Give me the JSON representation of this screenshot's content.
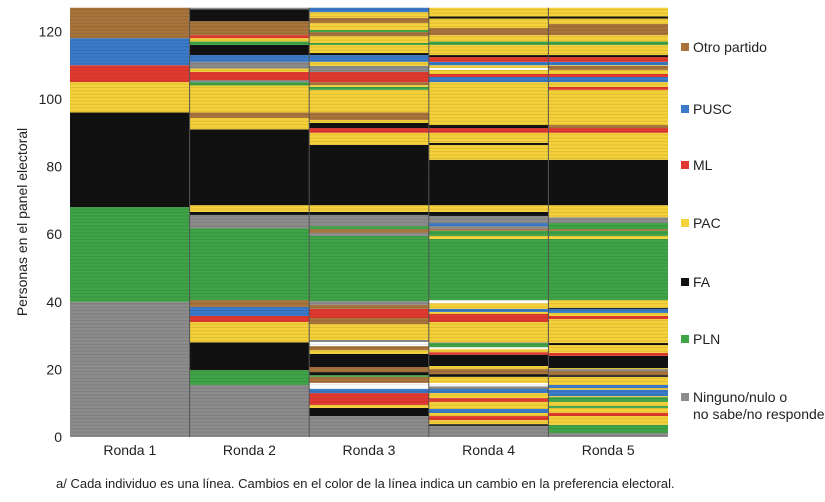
{
  "chart_data": {
    "type": "bar",
    "ylabel": "Personas en el panel electoral",
    "ylim": [
      0,
      127
    ],
    "yticks": [
      "0",
      "20",
      "40",
      "60",
      "80",
      "100",
      "120"
    ],
    "categories": [
      "Ronda 1",
      "Ronda 2",
      "Ronda 3",
      "Ronda 4",
      "Ronda 5"
    ],
    "legend": [
      {
        "key": "Otro",
        "label": "Otro partido",
        "color": "#a8743c"
      },
      {
        "key": "PUSC",
        "label": "PUSC",
        "color": "#3a7ac8"
      },
      {
        "key": "ML",
        "label": "ML",
        "color": "#e03a30"
      },
      {
        "key": "PAC",
        "label": "PAC",
        "color": "#f5d13a"
      },
      {
        "key": "FA",
        "label": "FA",
        "color": "#111111"
      },
      {
        "key": "PLN",
        "label": "PLN",
        "color": "#3fa347"
      },
      {
        "key": "Ninguno",
        "label": "Ninguno/nulo o",
        "label2": "no sabe/no responde",
        "color": "#8c8c8c"
      }
    ],
    "extra_colors": {
      "blank": "#ffffff"
    },
    "rounds": [
      [
        [
          0,
          40,
          "Ninguno"
        ],
        [
          40,
          68,
          "PLN"
        ],
        [
          68,
          96,
          "FA"
        ],
        [
          96,
          105,
          "PAC"
        ],
        [
          105,
          110,
          "ML"
        ],
        [
          110,
          118,
          "PUSC"
        ],
        [
          118,
          127,
          "Otro"
        ]
      ],
      [
        [
          0,
          15.4,
          "Ninguno"
        ],
        [
          15.4,
          19.8,
          "PLN"
        ],
        [
          19.8,
          28,
          "FA"
        ],
        [
          28,
          34,
          "PAC"
        ],
        [
          34,
          35.8,
          "ML"
        ],
        [
          35.8,
          38.5,
          "PUSC"
        ],
        [
          38.5,
          40.5,
          "Otro"
        ],
        [
          40.5,
          61.8,
          "PLN"
        ],
        [
          61.8,
          65.7,
          "Ninguno"
        ],
        [
          65.7,
          66.6,
          "FA"
        ],
        [
          66.6,
          68.6,
          "PAC"
        ],
        [
          68.6,
          91,
          "FA"
        ],
        [
          91,
          94.4,
          "PAC"
        ],
        [
          94.4,
          96,
          "Otro"
        ],
        [
          96,
          104,
          "PAC"
        ],
        [
          104,
          105,
          "PLN"
        ],
        [
          105,
          105.6,
          "Ninguno"
        ],
        [
          105.6,
          108,
          "ML"
        ],
        [
          108,
          109,
          "PAC"
        ],
        [
          109,
          111,
          "Ninguno"
        ],
        [
          111,
          113,
          "PUSC"
        ],
        [
          113,
          116,
          "FA"
        ],
        [
          116,
          117,
          "PLN"
        ],
        [
          117,
          118,
          "PAC"
        ],
        [
          118,
          118.9,
          "ML"
        ],
        [
          118.9,
          123,
          "Otro"
        ],
        [
          123,
          126.5,
          "FA"
        ],
        [
          126.5,
          127,
          "Ninguno"
        ]
      ],
      [
        [
          0,
          6.2,
          "Ninguno"
        ],
        [
          6.2,
          8.6,
          "FA"
        ],
        [
          8.6,
          9.5,
          "PAC"
        ],
        [
          9.5,
          13,
          "ML"
        ],
        [
          13,
          14.2,
          "PUSC"
        ],
        [
          14.2,
          16,
          "blank"
        ],
        [
          16,
          17.8,
          "Otro"
        ],
        [
          17.8,
          18.3,
          "PLN"
        ],
        [
          18.3,
          19.2,
          "FA"
        ],
        [
          19.2,
          20.7,
          "Otro"
        ],
        [
          20.7,
          24.6,
          "FA"
        ],
        [
          24.6,
          25.7,
          "PAC"
        ],
        [
          25.7,
          26.9,
          "Otro"
        ],
        [
          26.9,
          28.1,
          "blank"
        ],
        [
          28.1,
          28.7,
          "Ninguno"
        ],
        [
          28.7,
          33.4,
          "PAC"
        ],
        [
          33.4,
          35.2,
          "Otro"
        ],
        [
          35.2,
          37.9,
          "ML"
        ],
        [
          37.9,
          39.1,
          "Otro"
        ],
        [
          39.1,
          40.2,
          "Ninguno"
        ],
        [
          40.2,
          59.5,
          "PLN"
        ],
        [
          59.5,
          60.4,
          "Ninguno"
        ],
        [
          60.4,
          61.5,
          "Otro"
        ],
        [
          61.5,
          62.4,
          "PLN"
        ],
        [
          62.4,
          65.7,
          "Ninguno"
        ],
        [
          65.7,
          66.6,
          "FA"
        ],
        [
          66.6,
          68.6,
          "PAC"
        ],
        [
          68.6,
          86.4,
          "FA"
        ],
        [
          86.4,
          90,
          "PAC"
        ],
        [
          90,
          91.4,
          "ML"
        ],
        [
          91.4,
          92.9,
          "FA"
        ],
        [
          92.9,
          93.8,
          "PAC"
        ],
        [
          93.8,
          96,
          "Otro"
        ],
        [
          96,
          102.7,
          "PAC"
        ],
        [
          102.7,
          103.6,
          "PLN"
        ],
        [
          103.6,
          104.1,
          "PAC"
        ],
        [
          104.1,
          105,
          "Otro"
        ],
        [
          105,
          108,
          "ML"
        ],
        [
          108,
          109.8,
          "Ninguno"
        ],
        [
          109.8,
          111,
          "PAC"
        ],
        [
          111,
          113,
          "PUSC"
        ],
        [
          113,
          113.6,
          "FA"
        ],
        [
          113.6,
          116,
          "PAC"
        ],
        [
          116,
          116.6,
          "PLN"
        ],
        [
          116.6,
          118.6,
          "PAC"
        ],
        [
          118.6,
          119.8,
          "Otro"
        ],
        [
          119.8,
          120.4,
          "PLN"
        ],
        [
          120.4,
          122.5,
          "PAC"
        ],
        [
          122.5,
          124,
          "Otro"
        ],
        [
          124,
          125.7,
          "PAC"
        ],
        [
          125.7,
          127,
          "PUSC"
        ]
      ],
      [
        [
          0,
          3.3,
          "Ninguno"
        ],
        [
          3.3,
          3.8,
          "FA"
        ],
        [
          3.8,
          5,
          "PAC"
        ],
        [
          5,
          6.2,
          "ML"
        ],
        [
          6.2,
          7.1,
          "PAC"
        ],
        [
          7.1,
          8.3,
          "PUSC"
        ],
        [
          8.3,
          10.4,
          "PAC"
        ],
        [
          10.4,
          11.5,
          "ML"
        ],
        [
          11.5,
          13,
          "PAC"
        ],
        [
          13,
          14.2,
          "PUSC"
        ],
        [
          14.2,
          15,
          "Ninguno"
        ],
        [
          15,
          16,
          "blank"
        ],
        [
          16,
          17.8,
          "PAC"
        ],
        [
          17.8,
          18.6,
          "FA"
        ],
        [
          18.6,
          20.1,
          "Otro"
        ],
        [
          20.1,
          21,
          "PAC"
        ],
        [
          21,
          24.3,
          "FA"
        ],
        [
          24.3,
          25.1,
          "ML"
        ],
        [
          25.1,
          26,
          "PAC"
        ],
        [
          26,
          26.6,
          "blank"
        ],
        [
          26.6,
          27.8,
          "PLN"
        ],
        [
          27.8,
          28,
          "Ninguno"
        ],
        [
          28,
          34,
          "PAC"
        ],
        [
          34,
          36.4,
          "ML"
        ],
        [
          36.4,
          37,
          "PAC"
        ],
        [
          37,
          37.9,
          "PUSC"
        ],
        [
          37.9,
          39.6,
          "PAC"
        ],
        [
          39.6,
          40.5,
          "blank"
        ],
        [
          40.5,
          58.6,
          "PLN"
        ],
        [
          58.6,
          59.5,
          "PAC"
        ],
        [
          59.5,
          61,
          "PLN"
        ],
        [
          61,
          61.5,
          "Otro"
        ],
        [
          61.5,
          62.4,
          "Ninguno"
        ],
        [
          62.4,
          63.3,
          "PUSC"
        ],
        [
          63.3,
          65.4,
          "Ninguno"
        ],
        [
          65.4,
          66.6,
          "FA"
        ],
        [
          66.6,
          68.6,
          "PAC"
        ],
        [
          68.6,
          82,
          "FA"
        ],
        [
          82,
          86.4,
          "PAC"
        ],
        [
          86.4,
          87,
          "FA"
        ],
        [
          87,
          90,
          "PAC"
        ],
        [
          90,
          91.4,
          "ML"
        ],
        [
          91.4,
          92.3,
          "FA"
        ],
        [
          92.3,
          105,
          "PAC"
        ],
        [
          105,
          106.5,
          "PUSC"
        ],
        [
          106.5,
          107.4,
          "ML"
        ],
        [
          107.4,
          108.6,
          "PAC"
        ],
        [
          108.6,
          109.2,
          "blank"
        ],
        [
          109.2,
          110,
          "PAC"
        ],
        [
          110,
          111,
          "PUSC"
        ],
        [
          111,
          112.4,
          "ML"
        ],
        [
          112.4,
          113,
          "FA"
        ],
        [
          113,
          116,
          "PAC"
        ],
        [
          116,
          117,
          "PLN"
        ],
        [
          117,
          118.9,
          "PAC"
        ],
        [
          118.9,
          121,
          "Otro"
        ],
        [
          121,
          123.8,
          "PAC"
        ],
        [
          123.8,
          124.4,
          "FA"
        ],
        [
          124.4,
          127,
          "PAC"
        ]
      ],
      [
        [
          0,
          1.2,
          "Ninguno"
        ],
        [
          1.2,
          3.6,
          "PLN"
        ],
        [
          3.6,
          6.2,
          "PAC"
        ],
        [
          6.2,
          7.1,
          "ML"
        ],
        [
          7.1,
          8.6,
          "PAC"
        ],
        [
          8.6,
          9.2,
          "PLN"
        ],
        [
          9.2,
          10.4,
          "PAC"
        ],
        [
          10.4,
          11.8,
          "PLN"
        ],
        [
          11.8,
          12.1,
          "PAC"
        ],
        [
          12.1,
          14,
          "PUSC"
        ],
        [
          14,
          14.5,
          "PAC"
        ],
        [
          14.5,
          15.4,
          "PUSC"
        ],
        [
          15.4,
          17.8,
          "PAC"
        ],
        [
          17.8,
          18.3,
          "FA"
        ],
        [
          18.3,
          19.5,
          "Otro"
        ],
        [
          19.5,
          20.1,
          "Ninguno"
        ],
        [
          20.1,
          20.4,
          "PAC"
        ],
        [
          20.4,
          24,
          "FA"
        ],
        [
          24,
          24.9,
          "ML"
        ],
        [
          24.9,
          27.2,
          "PAC"
        ],
        [
          27.2,
          27.8,
          "FA"
        ],
        [
          27.8,
          34.9,
          "PAC"
        ],
        [
          34.9,
          35.8,
          "ML"
        ],
        [
          35.8,
          36.7,
          "PAC"
        ],
        [
          36.7,
          37.9,
          "PUSC"
        ],
        [
          37.9,
          38.2,
          "FA"
        ],
        [
          38.2,
          40.5,
          "PAC"
        ],
        [
          40.5,
          58.6,
          "PLN"
        ],
        [
          58.6,
          59.5,
          "PAC"
        ],
        [
          59.5,
          61,
          "PLN"
        ],
        [
          61,
          61.5,
          "Otro"
        ],
        [
          61.5,
          63.3,
          "PLN"
        ],
        [
          63.3,
          65,
          "Ninguno"
        ],
        [
          65,
          68.6,
          "PAC"
        ],
        [
          68.6,
          82,
          "FA"
        ],
        [
          82,
          90,
          "PAC"
        ],
        [
          90,
          91.4,
          "ML"
        ],
        [
          91.4,
          92.3,
          "Otro"
        ],
        [
          92.3,
          102.7,
          "PAC"
        ],
        [
          102.7,
          103.6,
          "ML"
        ],
        [
          103.6,
          105,
          "PAC"
        ],
        [
          105,
          106.5,
          "PUSC"
        ],
        [
          106.5,
          107.4,
          "ML"
        ],
        [
          107.4,
          108.6,
          "PAC"
        ],
        [
          108.6,
          109.8,
          "Otro"
        ],
        [
          109.8,
          110,
          "PAC"
        ],
        [
          110,
          111,
          "PUSC"
        ],
        [
          111,
          112.4,
          "ML"
        ],
        [
          112.4,
          113,
          "FA"
        ],
        [
          113,
          116,
          "PAC"
        ],
        [
          116,
          117,
          "PLN"
        ],
        [
          117,
          118.9,
          "PAC"
        ],
        [
          118.9,
          122.2,
          "Otro"
        ],
        [
          122.2,
          123.8,
          "PAC"
        ],
        [
          123.8,
          124.4,
          "FA"
        ],
        [
          124.4,
          127,
          "PAC"
        ]
      ]
    ]
  },
  "footnote": "a/ Cada individuo es una línea. Cambios en el color de la línea indica un cambio en la preferencia electoral."
}
